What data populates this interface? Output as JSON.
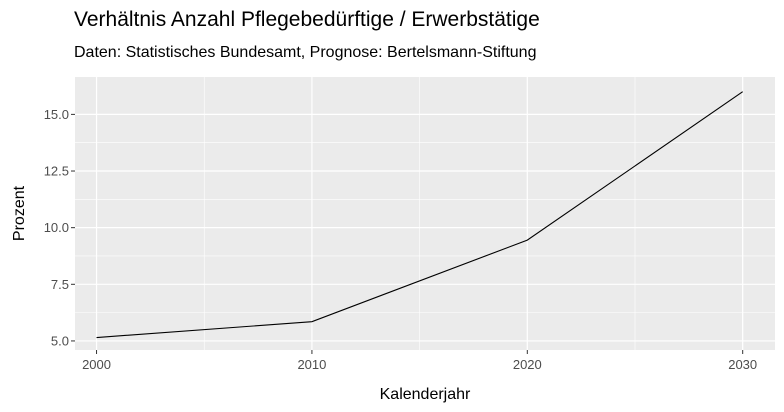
{
  "chart_data": {
    "type": "line",
    "title": "Verhältnis Anzahl Pflegebedürftige / Erwerbstätige",
    "subtitle": "Daten: Statistisches Bundesamt, Prognose: Bertelsmann-Stiftung",
    "xlabel": "Kalenderjahr",
    "ylabel": "Prozent",
    "x": [
      2000,
      2010,
      2020,
      2030
    ],
    "series": [
      {
        "values": [
          5.15,
          5.85,
          9.45,
          16.0
        ]
      }
    ],
    "xlim": [
      1999,
      2031.5
    ],
    "ylim": [
      4.6,
      16.65
    ],
    "x_ticks": [
      "2000",
      "2010",
      "2020",
      "2030"
    ],
    "y_ticks": [
      "5.0",
      "7.5",
      "10.0",
      "12.5",
      "15.0"
    ],
    "grid": true,
    "colors": {
      "panel": "#ebebeb",
      "grid": "#ffffff",
      "line": "#000000"
    }
  }
}
